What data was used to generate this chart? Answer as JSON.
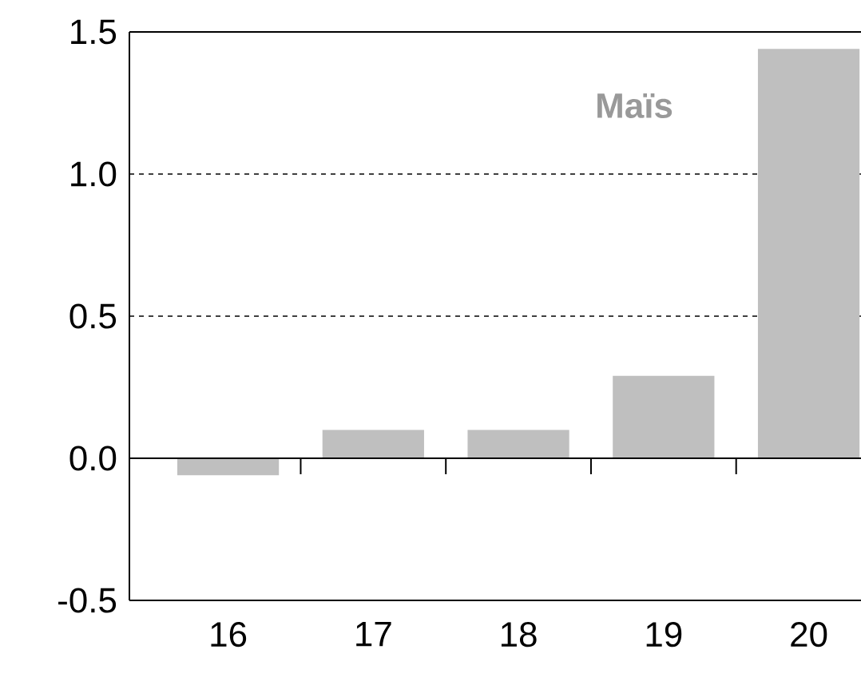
{
  "chart_data": {
    "type": "bar",
    "categories": [
      "16",
      "17",
      "18",
      "19",
      "20"
    ],
    "values": [
      -0.06,
      0.1,
      0.1,
      0.29,
      1.44
    ],
    "color": "#bfbfbf",
    "ylim": [
      -0.5,
      1.5
    ],
    "yticks": [
      -0.5,
      {
        "value": 0,
        "label": "0.0"
      },
      0.5,
      {
        "value": 1,
        "label": "1.0"
      },
      1.5
    ],
    "grid": "y",
    "annotations": [
      "**Maïs**"
    ]
  }
}
